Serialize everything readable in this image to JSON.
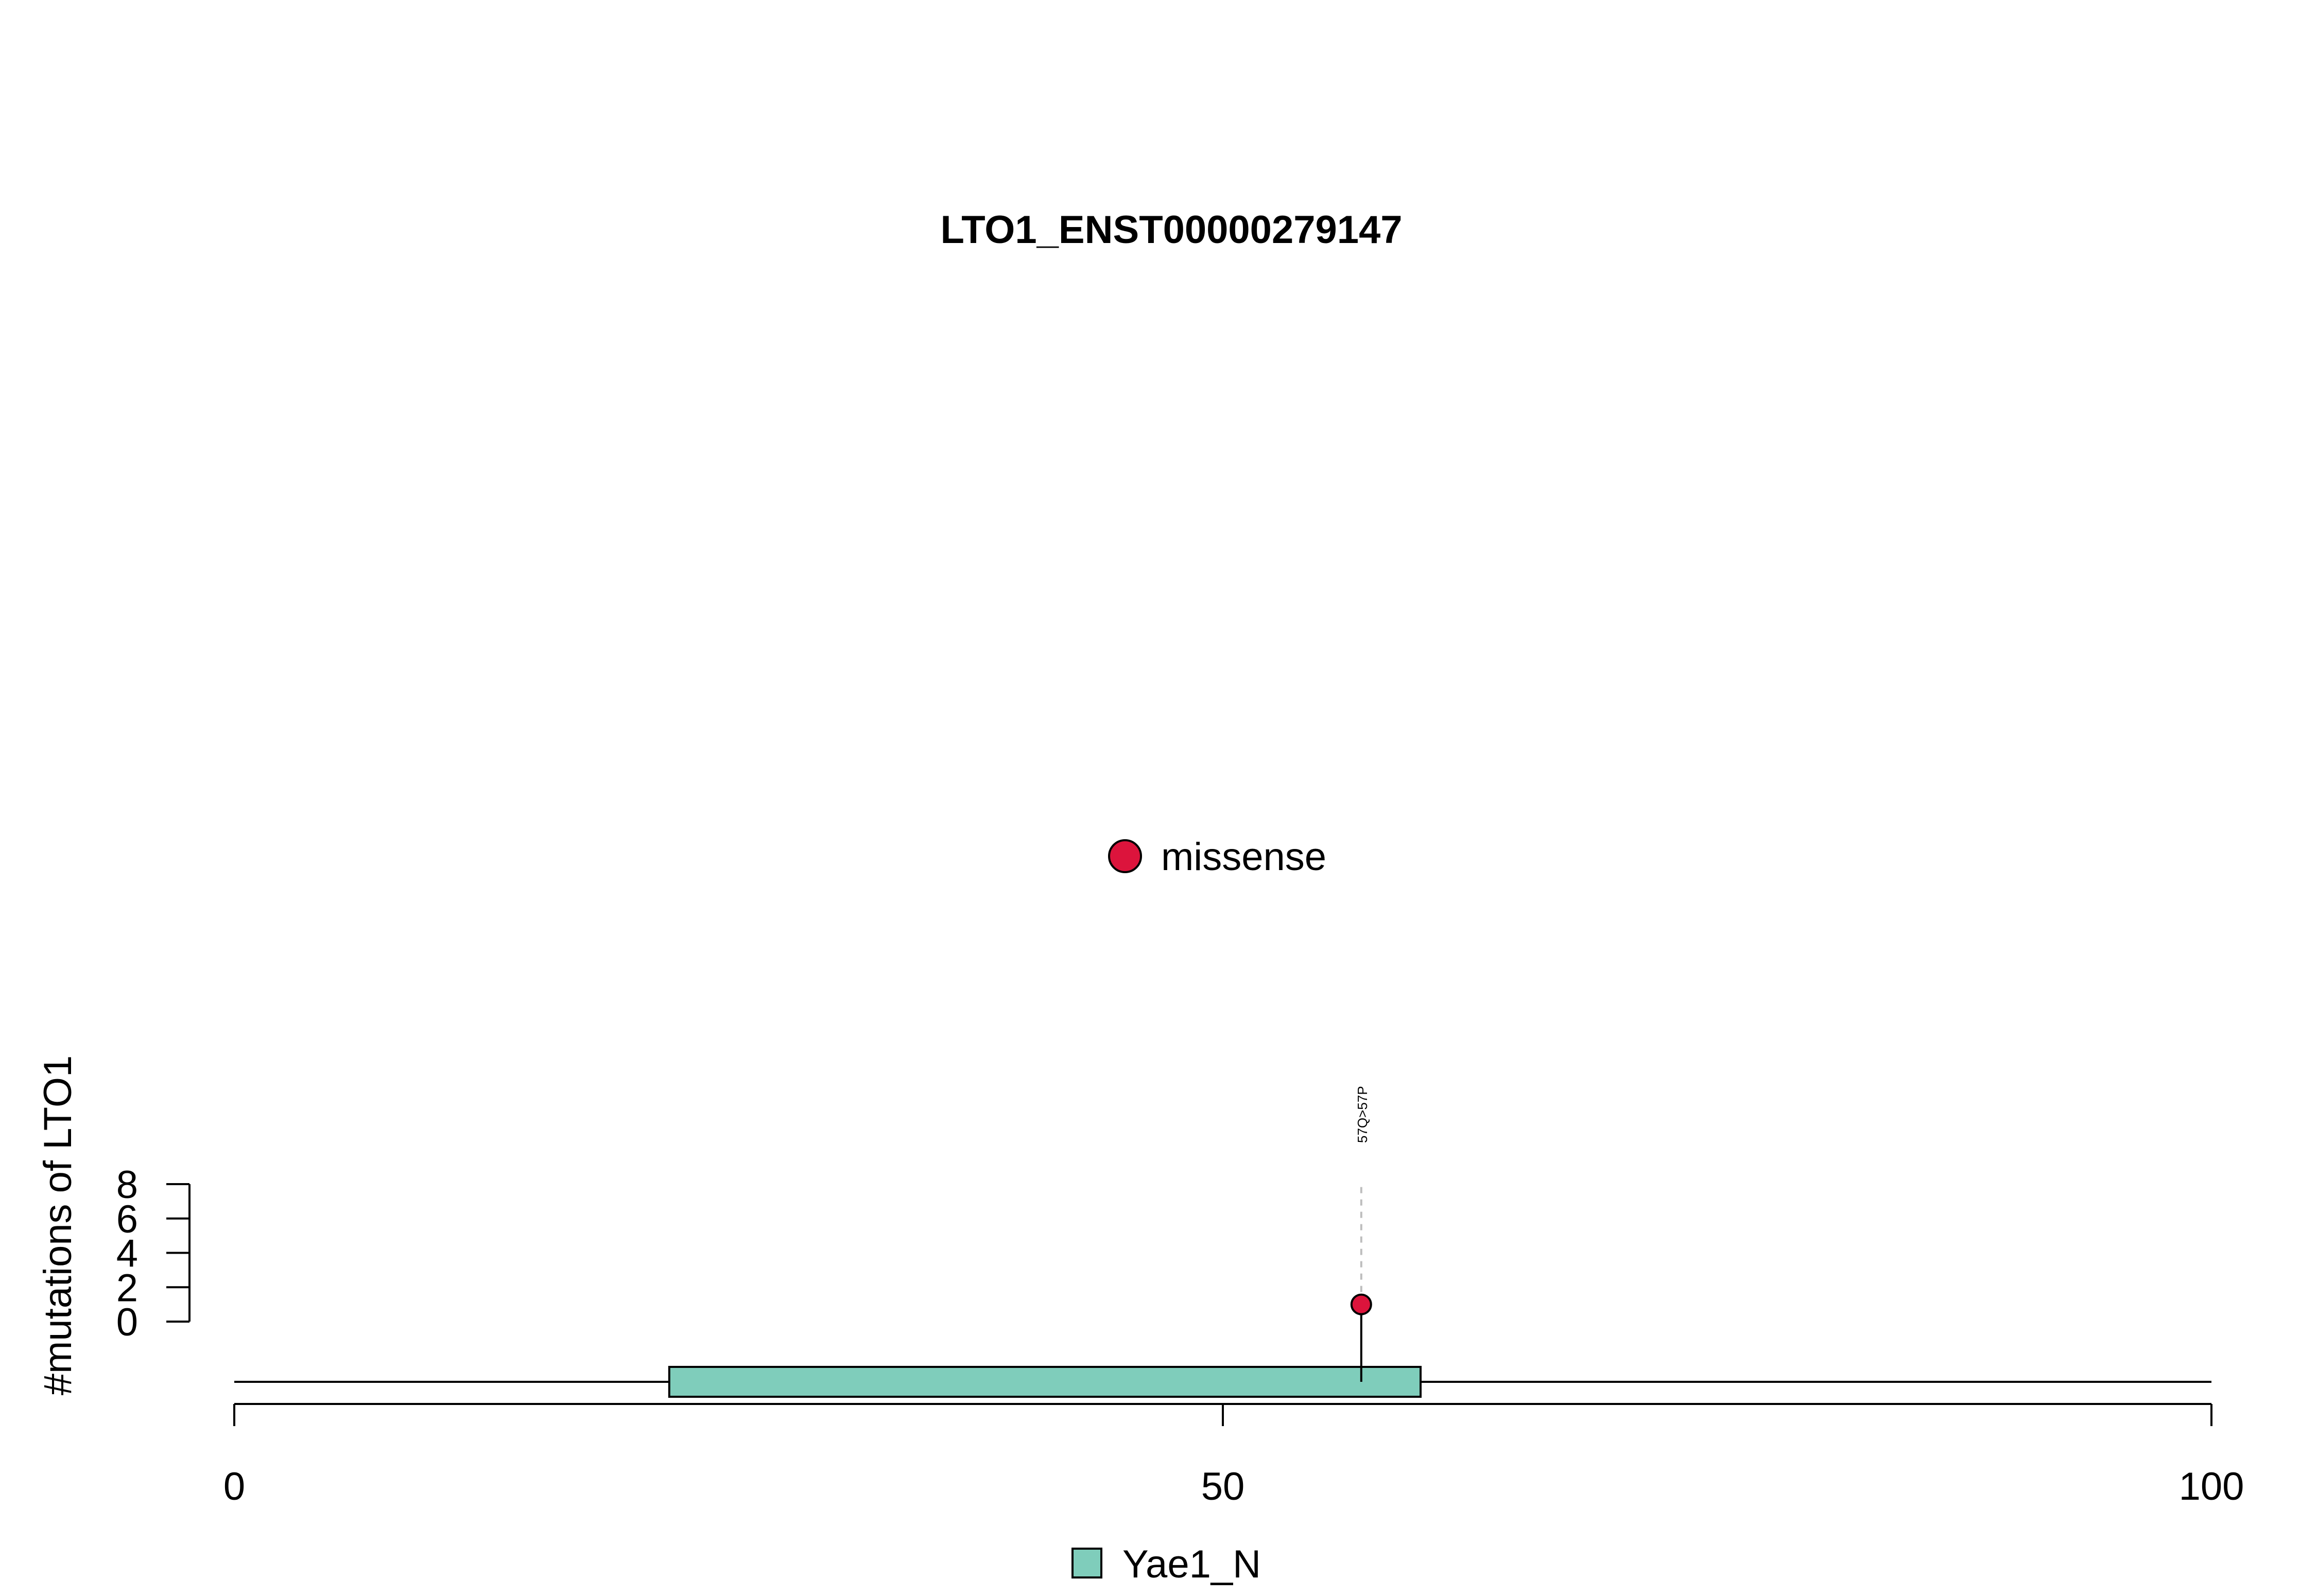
{
  "colors": {
    "missense": "#DC143C",
    "domain_fill": "#7FCDBB",
    "axis": "#000000",
    "stem_dashed": "#BEBEBE"
  },
  "chart_data": {
    "type": "lollipop",
    "title": "LTO1_ENST00000279147",
    "ylabel": "#mutations of LTO1",
    "xlim": [
      0,
      100
    ],
    "x_ticks": [
      0,
      50,
      100
    ],
    "y_ticks": [
      0,
      2,
      4,
      6,
      8
    ],
    "ylim": [
      0,
      8
    ],
    "protein_length": 100,
    "domains": [
      {
        "name": "Yae1_N",
        "start": 22,
        "end": 60
      }
    ],
    "mutations": [
      {
        "position": 57,
        "count": 1,
        "label": "57Q>57P",
        "type": "missense"
      }
    ],
    "legend_top": [
      {
        "label": "missense",
        "color_key": "missense"
      }
    ],
    "legend_bottom": [
      {
        "label": "Yae1_N",
        "color_key": "domain_fill"
      }
    ]
  }
}
